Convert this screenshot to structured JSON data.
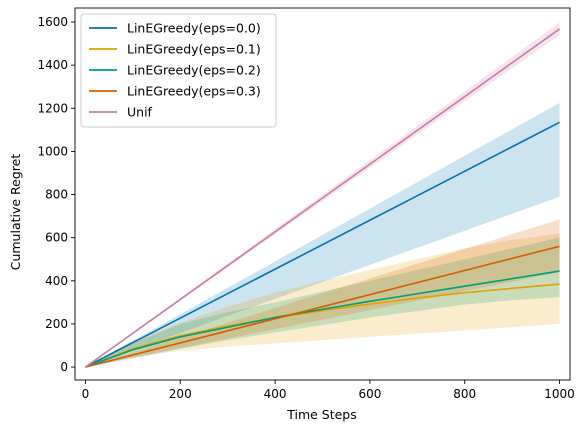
{
  "chart_data": {
    "type": "line",
    "title": "",
    "xlabel": "Time Steps",
    "ylabel": "Cumulative Regret",
    "xlim": [
      -22,
      1022
    ],
    "ylim": [
      -60,
      1665
    ],
    "xticks": [
      0,
      200,
      400,
      600,
      800,
      1000
    ],
    "yticks": [
      0,
      200,
      400,
      600,
      800,
      1000,
      1200,
      1400,
      1600
    ],
    "legend_position": "top-left",
    "grid": false,
    "series": [
      {
        "name": "LinEGreedy(eps=0.0)",
        "color": "#0072B2",
        "x": [
          0,
          1000
        ],
        "mean": [
          0,
          1135
        ],
        "lower": [
          0,
          790
        ],
        "upper": [
          0,
          1225
        ]
      },
      {
        "name": "LinEGreedy(eps=0.1)",
        "color": "#E69F00",
        "x": [
          0,
          100,
          200,
          300,
          400,
          500,
          600,
          700,
          800,
          900,
          1000
        ],
        "mean": [
          0,
          85,
          145,
          190,
          228,
          262,
          292,
          320,
          345,
          365,
          385
        ],
        "lower": [
          0,
          45,
          75,
          95,
          110,
          125,
          140,
          155,
          170,
          185,
          200
        ],
        "upper": [
          0,
          120,
          205,
          280,
          345,
          400,
          450,
          500,
          550,
          590,
          620
        ]
      },
      {
        "name": "LinEGreedy(eps=0.2)",
        "color": "#009E73",
        "x": [
          0,
          100,
          200,
          300,
          400,
          500,
          600,
          700,
          800,
          900,
          1000
        ],
        "mean": [
          0,
          80,
          140,
          185,
          230,
          268,
          305,
          340,
          375,
          410,
          445
        ],
        "lower": [
          0,
          40,
          85,
          125,
          160,
          195,
          230,
          260,
          290,
          310,
          325
        ],
        "upper": [
          0,
          110,
          200,
          255,
          300,
          350,
          400,
          450,
          500,
          550,
          600
        ]
      },
      {
        "name": "LinEGreedy(eps=0.3)",
        "color": "#D55E00",
        "x": [
          0,
          1000
        ],
        "mean": [
          0,
          560
        ],
        "lower": [
          0,
          440
        ],
        "upper": [
          0,
          685
        ]
      },
      {
        "name": "Unif",
        "color": "#CC79A7",
        "x": [
          0,
          1000
        ],
        "mean": [
          0,
          1568
        ],
        "lower": [
          0,
          1540
        ],
        "upper": [
          0,
          1598
        ]
      }
    ]
  }
}
